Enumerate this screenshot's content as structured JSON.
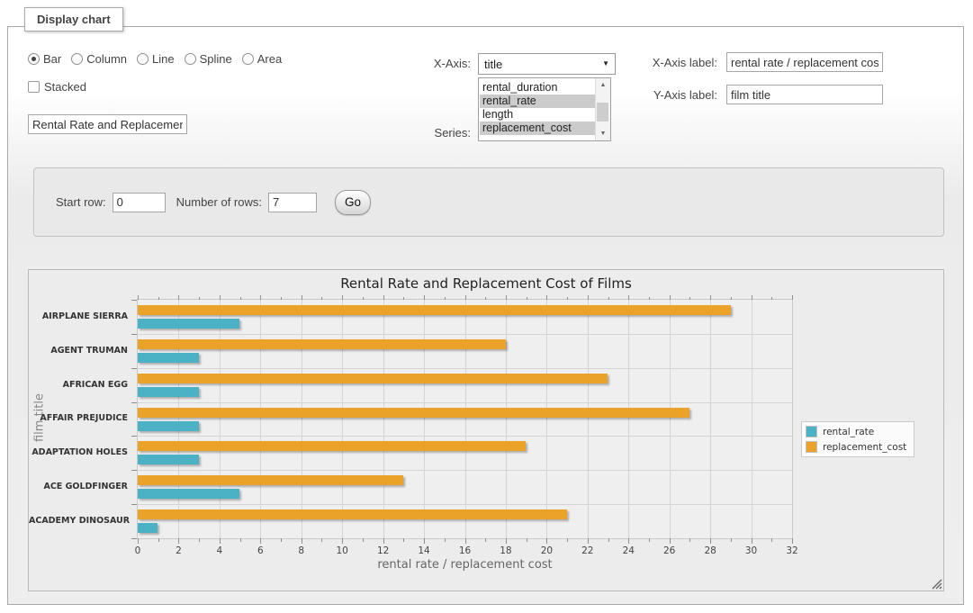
{
  "window": {
    "legend": "Display chart"
  },
  "controls": {
    "chart_types": [
      {
        "label": "Bar",
        "checked": true
      },
      {
        "label": "Column",
        "checked": false
      },
      {
        "label": "Line",
        "checked": false
      },
      {
        "label": "Spline",
        "checked": false
      },
      {
        "label": "Area",
        "checked": false
      }
    ],
    "stacked": {
      "label": "Stacked",
      "checked": false
    },
    "chart_title_input": {
      "value": "Rental Rate and Replacement Cost of Films"
    },
    "x_axis": {
      "label": "X-Axis:",
      "selected": "title"
    },
    "series_select": {
      "label": "Series:",
      "options": [
        {
          "label": "rental_duration",
          "selected": false
        },
        {
          "label": "rental_rate",
          "selected": true
        },
        {
          "label": "length",
          "selected": false
        },
        {
          "label": "replacement_cost",
          "selected": true
        }
      ]
    },
    "x_axis_label": {
      "label": "X-Axis label:",
      "value": "rental rate / replacement cost"
    },
    "y_axis_label": {
      "label": "Y-Axis label:",
      "value": "film title"
    }
  },
  "rows_form": {
    "start_row_label": "Start row:",
    "start_row_value": "0",
    "num_rows_label": "Number of rows:",
    "num_rows_value": "7",
    "go_label": "Go"
  },
  "chart_data": {
    "type": "bar",
    "orientation": "horizontal",
    "title": "Rental Rate and Replacement Cost of Films",
    "categories": [
      "AIRPLANE SIERRA",
      "AGENT TRUMAN",
      "AFRICAN EGG",
      "AFFAIR PREJUDICE",
      "ADAPTATION HOLES",
      "ACE GOLDFINGER",
      "ACADEMY DINOSAUR"
    ],
    "series": [
      {
        "name": "rental_rate",
        "color": "#4bb2c5",
        "values": [
          4.99,
          2.99,
          2.99,
          2.99,
          2.99,
          4.99,
          0.99
        ]
      },
      {
        "name": "replacement_cost",
        "color": "#EAA228",
        "values": [
          28.99,
          17.99,
          22.99,
          26.99,
          18.99,
          12.99,
          20.99
        ]
      }
    ],
    "xlabel": "rental rate / replacement cost",
    "ylabel": "film title",
    "xlim": [
      0,
      32
    ],
    "x_ticks": [
      0,
      2,
      4,
      6,
      8,
      10,
      12,
      14,
      16,
      18,
      20,
      22,
      24,
      26,
      28,
      30,
      32
    ],
    "x_minor_tick_step": 1,
    "grid": true,
    "legend_position": "right"
  }
}
